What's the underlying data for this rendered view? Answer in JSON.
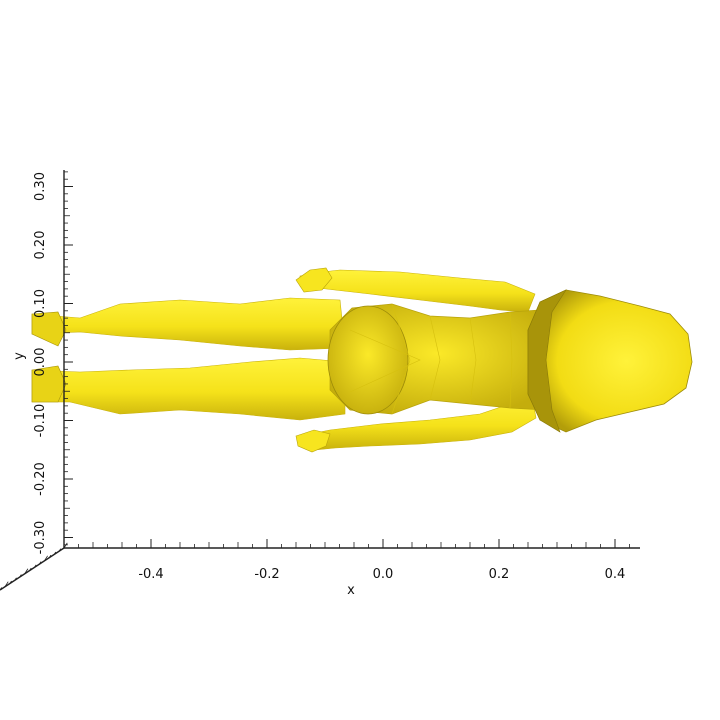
{
  "plot": {
    "x_axis": {
      "label": "x",
      "range": [
        -0.55,
        0.45
      ],
      "ticks": [
        -0.4,
        -0.2,
        0.0,
        0.2,
        0.4
      ],
      "tick_labels": [
        "-0.4",
        "-0.2",
        "0.0",
        "0.2",
        "0.4"
      ]
    },
    "y_axis": {
      "label": "y",
      "range": [
        -0.33,
        0.33
      ],
      "ticks": [
        -0.3,
        -0.2,
        -0.1,
        0.0,
        0.1,
        0.2,
        0.3
      ],
      "tick_labels": [
        "-0.30",
        "-0.20",
        "-0.10",
        "0.00",
        "0.10",
        "0.20",
        "0.30"
      ]
    },
    "mesh": {
      "description_icon": "human-figure-mesh",
      "base_color": "#f5e21a",
      "highlight_color": "#fff23a",
      "shade_color": "#c9b20c",
      "dark_color": "#8a7a08"
    }
  }
}
